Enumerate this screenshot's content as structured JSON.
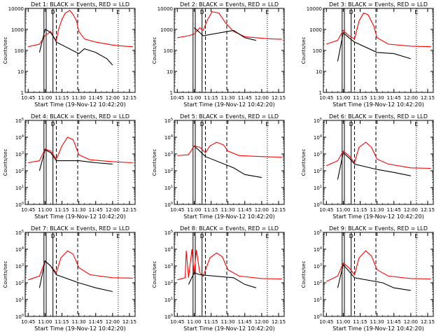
{
  "ylabel": "Counts/sec",
  "xlabel": "Start Time (19-Nov-12 10:42:20)",
  "x_ticks": [
    "10:45",
    "11:00",
    "11:15",
    "11:30",
    "11:45",
    "12:00",
    "12:15"
  ],
  "legend_markers": [
    "D",
    "E"
  ],
  "series_colors": {
    "events": "#000000",
    "lld": "#ff0000"
  },
  "chart_data": [
    {
      "type": "line",
      "title": "Det 1: BLACK = Events, RED = LLD",
      "y_scale": "log",
      "ylim": [
        1,
        10000
      ],
      "y_ticks": [
        "1",
        "10",
        "100",
        "1000",
        "10000"
      ],
      "xlim": [
        "10:42:20",
        "12:20"
      ],
      "solid_vlines": [
        "10:59",
        "11:01",
        "11:07"
      ],
      "dashed_vlines": [
        "11:10",
        "11:29"
      ],
      "dotted_vlines": [
        "12:05"
      ],
      "series": [
        {
          "color": "#ff0000",
          "points": [
            [
              "10:45",
              150
            ],
            [
              "10:55",
              200
            ],
            [
              "11:00",
              500
            ],
            [
              "11:05",
              800
            ],
            [
              "11:08",
              400
            ],
            [
              "11:10",
              300
            ],
            [
              "11:12",
              1000
            ],
            [
              "11:15",
              3000
            ],
            [
              "11:18",
              6000
            ],
            [
              "11:22",
              8000
            ],
            [
              "11:25",
              5000
            ],
            [
              "11:28",
              2500
            ],
            [
              "11:30",
              800
            ],
            [
              "11:35",
              350
            ],
            [
              "11:45",
              250
            ],
            [
              "12:00",
              180
            ],
            [
              "12:10",
              160
            ],
            [
              "12:18",
              150
            ]
          ]
        },
        {
          "color": "#000000",
          "points": [
            [
              "10:55",
              80
            ],
            [
              "11:00",
              1000
            ],
            [
              "11:02",
              900
            ],
            [
              "11:05",
              700
            ],
            [
              "11:08",
              400
            ],
            [
              "11:10",
              250
            ],
            [
              "11:30",
              70
            ],
            [
              "11:35",
              120
            ],
            [
              "11:45",
              80
            ],
            [
              "11:55",
              40
            ],
            [
              "12:00",
              20
            ]
          ]
        }
      ]
    },
    {
      "type": "line",
      "title": "Det 2: BLACK = Events, RED = LLD",
      "y_scale": "log",
      "ylim": [
        1,
        10000
      ],
      "y_ticks": [
        "1",
        "10",
        "100",
        "1000",
        "10000"
      ],
      "xlim": [
        "10:42:20",
        "12:20"
      ],
      "solid_vlines": [
        "10:59",
        "11:01",
        "11:07"
      ],
      "dashed_vlines": [
        "11:10",
        "11:29"
      ],
      "dotted_vlines": [
        "12:05"
      ],
      "series": [
        {
          "color": "#ff0000",
          "points": [
            [
              "10:45",
              400
            ],
            [
              "10:55",
              500
            ],
            [
              "11:00",
              600
            ],
            [
              "11:05",
              1200
            ],
            [
              "11:08",
              900
            ],
            [
              "11:12",
              3000
            ],
            [
              "11:16",
              7000
            ],
            [
              "11:22",
              6000
            ],
            [
              "11:28",
              2000
            ],
            [
              "11:35",
              800
            ],
            [
              "11:45",
              450
            ],
            [
              "12:00",
              380
            ],
            [
              "12:10",
              350
            ],
            [
              "12:18",
              340
            ]
          ]
        },
        {
          "color": "#000000",
          "points": [
            [
              "11:00",
              1200
            ],
            [
              "11:05",
              700
            ],
            [
              "11:08",
              500
            ],
            [
              "11:35",
              900
            ],
            [
              "11:45",
              400
            ],
            [
              "11:55",
              300
            ]
          ]
        }
      ]
    },
    {
      "type": "line",
      "title": "Det 3: BLACK = Events, RED = LLD",
      "y_scale": "log",
      "ylim": [
        1,
        10000
      ],
      "y_ticks": [
        "1",
        "10",
        "100",
        "1000",
        "10000"
      ],
      "xlim": [
        "10:42:20",
        "12:20"
      ],
      "solid_vlines": [
        "10:59",
        "11:01",
        "11:07"
      ],
      "dashed_vlines": [
        "11:10",
        "11:29"
      ],
      "dotted_vlines": [
        "12:05"
      ],
      "series": [
        {
          "color": "#ff0000",
          "points": [
            [
              "10:45",
              200
            ],
            [
              "10:55",
              300
            ],
            [
              "11:00",
              900
            ],
            [
              "11:05",
              500
            ],
            [
              "11:10",
              350
            ],
            [
              "11:14",
              2500
            ],
            [
              "11:18",
              6000
            ],
            [
              "11:22",
              5000
            ],
            [
              "11:27",
              1500
            ],
            [
              "11:30",
              400
            ],
            [
              "11:40",
              200
            ],
            [
              "12:00",
              160
            ],
            [
              "12:18",
              150
            ]
          ]
        },
        {
          "color": "#000000",
          "points": [
            [
              "10:55",
              30
            ],
            [
              "11:00",
              700
            ],
            [
              "11:05",
              400
            ],
            [
              "11:10",
              250
            ],
            [
              "11:30",
              80
            ],
            [
              "11:45",
              70
            ],
            [
              "12:00",
              40
            ]
          ]
        }
      ]
    },
    {
      "type": "line",
      "title": "Det 4: BLACK = Events, RED = LLD",
      "y_scale": "log",
      "ylim": [
        1,
        100000
      ],
      "y_ticks": [
        "10^0",
        "10^1",
        "10^2",
        "10^3",
        "10^4",
        "10^5"
      ],
      "xlim": [
        "10:42:20",
        "12:20"
      ],
      "solid_vlines": [
        "10:59",
        "11:01",
        "11:07"
      ],
      "dashed_vlines": [
        "11:10",
        "11:29"
      ],
      "dotted_vlines": [
        "12:05"
      ],
      "series": [
        {
          "color": "#ff0000",
          "points": [
            [
              "10:45",
              300
            ],
            [
              "10:55",
              400
            ],
            [
              "11:00",
              2000
            ],
            [
              "11:05",
              1500
            ],
            [
              "11:10",
              500
            ],
            [
              "11:15",
              3000
            ],
            [
              "11:20",
              10000
            ],
            [
              "11:25",
              7000
            ],
            [
              "11:30",
              900
            ],
            [
              "11:40",
              450
            ],
            [
              "12:00",
              350
            ],
            [
              "12:18",
              300
            ]
          ]
        },
        {
          "color": "#000000",
          "points": [
            [
              "10:55",
              100
            ],
            [
              "11:00",
              1800
            ],
            [
              "11:05",
              1200
            ],
            [
              "11:10",
              400
            ],
            [
              "11:30",
              400
            ],
            [
              "11:45",
              300
            ],
            [
              "12:00",
              250
            ]
          ]
        }
      ]
    },
    {
      "type": "line",
      "title": "Det 5: BLACK = Events, RED = LLD",
      "y_scale": "log",
      "ylim": [
        1,
        100000
      ],
      "y_ticks": [
        "10^0",
        "10^1",
        "10^2",
        "10^3",
        "10^4",
        "10^5"
      ],
      "xlim": [
        "10:42:20",
        "12:20"
      ],
      "solid_vlines": [
        "10:59",
        "11:01",
        "11:07"
      ],
      "dashed_vlines": [
        "11:10",
        "11:29"
      ],
      "dotted_vlines": [
        "12:05"
      ],
      "series": [
        {
          "color": "#ff0000",
          "points": [
            [
              "10:45",
              800
            ],
            [
              "10:55",
              900
            ],
            [
              "11:00",
              3000
            ],
            [
              "11:05",
              2500
            ],
            [
              "11:10",
              1200
            ],
            [
              "11:14",
              3000
            ],
            [
              "11:20",
              5000
            ],
            [
              "11:26",
              3500
            ],
            [
              "11:30",
              1500
            ],
            [
              "11:40",
              800
            ],
            [
              "12:00",
              700
            ],
            [
              "12:18",
              650
            ]
          ]
        },
        {
          "color": "#000000",
          "points": [
            [
              "11:00",
              3000
            ],
            [
              "11:05",
              1500
            ],
            [
              "11:10",
              700
            ],
            [
              "11:35",
              150
            ],
            [
              "11:45",
              60
            ],
            [
              "12:00",
              40
            ]
          ]
        }
      ]
    },
    {
      "type": "line",
      "title": "Det 6: BLACK = Events, RED = LLD",
      "y_scale": "log",
      "ylim": [
        1,
        100000
      ],
      "y_ticks": [
        "10^0",
        "10^1",
        "10^2",
        "10^3",
        "10^4",
        "10^5"
      ],
      "xlim": [
        "10:42:20",
        "12:20"
      ],
      "solid_vlines": [
        "10:59",
        "11:01",
        "11:07"
      ],
      "dashed_vlines": [
        "11:10",
        "11:29"
      ],
      "dotted_vlines": [
        "12:05"
      ],
      "series": [
        {
          "color": "#ff0000",
          "points": [
            [
              "10:45",
              200
            ],
            [
              "10:55",
              400
            ],
            [
              "11:00",
              1500
            ],
            [
              "11:05",
              800
            ],
            [
              "11:10",
              300
            ],
            [
              "11:14",
              2500
            ],
            [
              "11:20",
              5000
            ],
            [
              "11:25",
              2500
            ],
            [
              "11:30",
              500
            ],
            [
              "11:40",
              250
            ],
            [
              "12:00",
              150
            ],
            [
              "12:18",
              140
            ]
          ]
        },
        {
          "color": "#000000",
          "points": [
            [
              "10:55",
              30
            ],
            [
              "11:00",
              1200
            ],
            [
              "11:05",
              600
            ],
            [
              "11:10",
              250
            ],
            [
              "11:30",
              120
            ],
            [
              "11:45",
              80
            ],
            [
              "12:00",
              50
            ]
          ]
        }
      ]
    },
    {
      "type": "line",
      "title": "Det 7: BLACK = Events, RED = LLD",
      "y_scale": "log",
      "ylim": [
        1,
        100000
      ],
      "y_ticks": [
        "10^0",
        "10^1",
        "10^2",
        "10^3",
        "10^4",
        "10^5"
      ],
      "xlim": [
        "10:42:20",
        "12:20"
      ],
      "solid_vlines": [
        "10:59",
        "11:01",
        "11:07"
      ],
      "dashed_vlines": [
        "11:10",
        "11:29"
      ],
      "dotted_vlines": [
        "12:05"
      ],
      "series": [
        {
          "color": "#ff0000",
          "points": [
            [
              "10:45",
              150
            ],
            [
              "10:55",
              250
            ],
            [
              "11:00",
              2000
            ],
            [
              "11:05",
              1000
            ],
            [
              "11:10",
              400
            ],
            [
              "11:14",
              3000
            ],
            [
              "11:20",
              8000
            ],
            [
              "11:25",
              5000
            ],
            [
              "11:30",
              800
            ],
            [
              "11:40",
              300
            ],
            [
              "12:00",
              200
            ],
            [
              "12:18",
              190
            ]
          ]
        },
        {
          "color": "#000000",
          "points": [
            [
              "10:55",
              50
            ],
            [
              "11:00",
              2000
            ],
            [
              "11:05",
              1000
            ],
            [
              "11:10",
              300
            ],
            [
              "11:30",
              100
            ],
            [
              "11:45",
              50
            ],
            [
              "12:00",
              30
            ]
          ]
        }
      ]
    },
    {
      "type": "line",
      "title": "Det 8: BLACK = Events, RED = LLD",
      "y_scale": "log",
      "ylim": [
        1,
        100000
      ],
      "y_ticks": [
        "10^0",
        "10^1",
        "10^2",
        "10^3",
        "10^4",
        "10^5"
      ],
      "xlim": [
        "10:42:20",
        "12:20"
      ],
      "solid_vlines": [
        "10:59",
        "11:01",
        "11:07"
      ],
      "dashed_vlines": [
        "11:10",
        "11:29"
      ],
      "dotted_vlines": [
        "12:05"
      ],
      "series": [
        {
          "color": "#ff0000",
          "points": [
            [
              "10:45",
              150
            ],
            [
              "10:52",
              200
            ],
            [
              "10:53",
              8000
            ],
            [
              "10:55",
              200
            ],
            [
              "10:58",
              10000
            ],
            [
              "11:00",
              300
            ],
            [
              "11:02",
              9000
            ],
            [
              "11:05",
              400
            ],
            [
              "11:08",
              250
            ],
            [
              "11:14",
              3000
            ],
            [
              "11:20",
              6000
            ],
            [
              "11:25",
              3500
            ],
            [
              "11:30",
              600
            ],
            [
              "11:40",
              250
            ],
            [
              "12:00",
              180
            ],
            [
              "12:18",
              170
            ]
          ]
        },
        {
          "color": "#000000",
          "points": [
            [
              "10:55",
              80
            ],
            [
              "11:00",
              400
            ],
            [
              "11:05",
              300
            ],
            [
              "11:35",
              200
            ],
            [
              "11:45",
              80
            ],
            [
              "11:55",
              50
            ]
          ]
        }
      ]
    },
    {
      "type": "line",
      "title": "Det 9: BLACK = Events, RED = LLD",
      "y_scale": "log",
      "ylim": [
        1,
        100000
      ],
      "y_ticks": [
        "10^0",
        "10^1",
        "10^2",
        "10^3",
        "10^4",
        "10^5"
      ],
      "xlim": [
        "10:42:20",
        "12:20"
      ],
      "solid_vlines": [
        "10:59",
        "11:01",
        "11:07"
      ],
      "dashed_vlines": [
        "11:10",
        "11:29"
      ],
      "dotted_vlines": [
        "12:05"
      ],
      "series": [
        {
          "color": "#ff0000",
          "points": [
            [
              "10:45",
              120
            ],
            [
              "10:55",
              250
            ],
            [
              "11:00",
              1500
            ],
            [
              "11:05",
              800
            ],
            [
              "11:10",
              300
            ],
            [
              "11:14",
              3000
            ],
            [
              "11:20",
              8000
            ],
            [
              "11:25",
              4000
            ],
            [
              "11:30",
              600
            ],
            [
              "11:40",
              250
            ],
            [
              "12:00",
              180
            ],
            [
              "12:18",
              170
            ]
          ]
        },
        {
          "color": "#000000",
          "points": [
            [
              "10:55",
              50
            ],
            [
              "11:00",
              1200
            ],
            [
              "11:05",
              500
            ],
            [
              "11:10",
              200
            ],
            [
              "11:35",
              100
            ],
            [
              "11:45",
              50
            ],
            [
              "12:00",
              35
            ]
          ]
        }
      ]
    }
  ]
}
